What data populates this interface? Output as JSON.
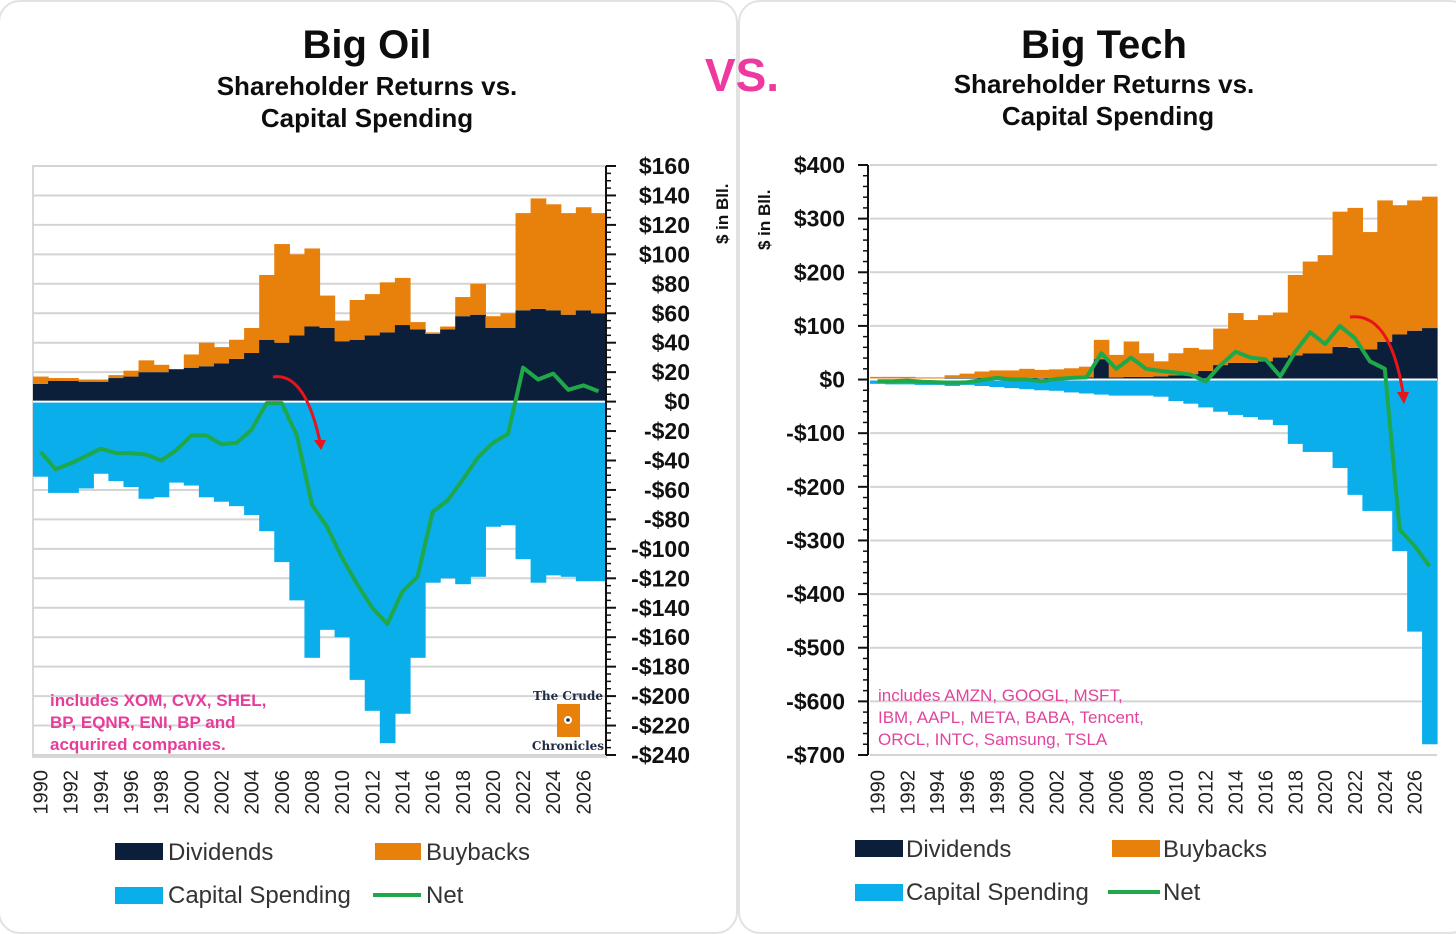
{
  "vs_label": "VS.",
  "colors": {
    "dividends": "#0b1f3a",
    "buybacks": "#e8800c",
    "capex": "#0aaeea",
    "net": "#1fa84a",
    "arrow": "#e8141c",
    "note": "#e83c9a"
  },
  "chart_data": [
    {
      "type": "bar",
      "title": "Big Oil",
      "subtitle_line1": "Shareholder Returns vs.",
      "subtitle_line2": "Capital Spending",
      "ylabel": "$ in Bll.",
      "ylim": [
        -240,
        160
      ],
      "ytick_step": 20,
      "grid": true,
      "note": [
        "includes  XOM, CVX, SHEL,",
        "BP, EQNR, ENI, BP and",
        "acqurired  companies."
      ],
      "logo": {
        "line1": "The Crude",
        "line2": "Chronicles"
      },
      "legend": {
        "dividends": "Dividends",
        "buybacks": "Buybacks",
        "capex": "Capital Spending",
        "net": "Net"
      },
      "x": [
        1990,
        1991,
        1992,
        1993,
        1994,
        1995,
        1996,
        1997,
        1998,
        1999,
        2000,
        2001,
        2002,
        2003,
        2004,
        2005,
        2006,
        2007,
        2008,
        2009,
        2010,
        2011,
        2012,
        2013,
        2014,
        2015,
        2016,
        2017,
        2018,
        2019,
        2020,
        2021,
        2022,
        2023,
        2024,
        2025,
        2026,
        2027
      ],
      "series": [
        {
          "name": "Dividends",
          "values": [
            12,
            14,
            14,
            13.5,
            13.5,
            16,
            17,
            20,
            20,
            22,
            23,
            24,
            26,
            29,
            33,
            42,
            40,
            45,
            51,
            50,
            41,
            42,
            45,
            47,
            52,
            49,
            46,
            49,
            58,
            59,
            50,
            50,
            62,
            63,
            62,
            59,
            62,
            60
          ]
        },
        {
          "name": "Buybacks",
          "values": [
            5,
            2,
            2,
            1.5,
            1.5,
            2,
            4,
            8,
            5,
            0,
            9,
            16,
            11,
            13,
            17,
            44,
            67,
            55,
            53,
            22,
            14,
            27,
            28,
            34,
            32,
            5,
            1,
            2,
            13,
            21,
            8,
            10,
            66,
            75,
            72,
            69,
            70,
            68
          ]
        },
        {
          "name": "Capital Spending",
          "values": [
            -51,
            -62,
            -62,
            -59,
            -49,
            -54,
            -58,
            -66,
            -65,
            -55,
            -57,
            -65,
            -68,
            -71,
            -77,
            -88,
            -109,
            -135,
            -174,
            -155,
            -160,
            -189,
            -210,
            -232,
            -212,
            -174,
            -123,
            -120,
            -124,
            -119,
            -85,
            -84,
            -107,
            -123,
            -118,
            -119,
            -122,
            -122
          ]
        },
        {
          "name": "Net",
          "values": [
            -34,
            -46,
            -42,
            -37,
            -32,
            -35,
            -35,
            -36,
            -40,
            -33,
            -23,
            -23,
            -29,
            -28,
            -19,
            -1,
            -1,
            -23,
            -70,
            -85,
            -106,
            -124,
            -140,
            -151,
            -129,
            -119,
            -75,
            -67,
            -53,
            -38,
            -28,
            -22,
            23,
            15,
            19,
            8,
            11,
            7
          ]
        }
      ]
    },
    {
      "type": "bar",
      "title": "Big Tech",
      "subtitle_line1": "Shareholder Returns vs.",
      "subtitle_line2": "Capital Spending",
      "ylabel": "$ in Bll.",
      "ylim": [
        -700,
        400
      ],
      "ytick_step": 100,
      "grid": true,
      "note": [
        "includes AMZN,  GOOGL,  MSFT,",
        "IBM, AAPL, META, BABA, Tencent,",
        "ORCL,  INTC, Samsung, TSLA"
      ],
      "legend": {
        "dividends": "Dividends",
        "buybacks": "Buybacks",
        "capex": "Capital Spending",
        "net": "Net"
      },
      "x": [
        1990,
        1991,
        1992,
        1993,
        1994,
        1995,
        1996,
        1997,
        1998,
        1999,
        2000,
        2001,
        2002,
        2003,
        2004,
        2005,
        2006,
        2007,
        2008,
        2009,
        2010,
        2011,
        2012,
        2013,
        2014,
        2015,
        2016,
        2017,
        2018,
        2019,
        2020,
        2021,
        2022,
        2023,
        2024,
        2025,
        2026,
        2027
      ],
      "series": [
        {
          "name": "Dividends",
          "values": [
            2,
            2,
            2,
            2,
            2,
            3,
            3,
            3,
            3,
            3,
            3,
            3,
            3,
            3,
            4,
            38,
            4,
            5,
            5,
            6,
            8,
            10,
            16,
            27,
            31,
            31,
            34,
            41,
            45,
            49,
            49,
            61,
            59,
            56,
            70,
            84,
            91,
            96
          ]
        },
        {
          "name": "Buybacks",
          "values": [
            3,
            3,
            3,
            2,
            2,
            5,
            8,
            12,
            14,
            14,
            17,
            15,
            16,
            18,
            20,
            36,
            42,
            66,
            44,
            28,
            41,
            49,
            40,
            68,
            93,
            80,
            86,
            84,
            150,
            171,
            183,
            252,
            261,
            219,
            264,
            241,
            243,
            245
          ]
        },
        {
          "name": "Capital Spending",
          "values": [
            -8,
            -9,
            -9,
            -10,
            -10,
            -12,
            -10,
            -12,
            -14,
            -16,
            -18,
            -20,
            -21,
            -24,
            -26,
            -28,
            -30,
            -30,
            -30,
            -32,
            -40,
            -45,
            -52,
            -60,
            -66,
            -70,
            -75,
            -85,
            -120,
            -135,
            -135,
            -165,
            -215,
            -245,
            -245,
            -320,
            -470,
            -680
          ]
        },
        {
          "name": "Net",
          "values": [
            -3,
            -3,
            -2,
            -4,
            -5,
            -6,
            -5,
            -1,
            3,
            0,
            0,
            -3,
            1,
            3,
            4,
            49,
            20,
            41,
            20,
            16,
            13,
            9,
            -4,
            27,
            52,
            41,
            38,
            6,
            52,
            88,
            66,
            100,
            77,
            34,
            20,
            -280,
            -310,
            -348
          ]
        }
      ]
    }
  ]
}
